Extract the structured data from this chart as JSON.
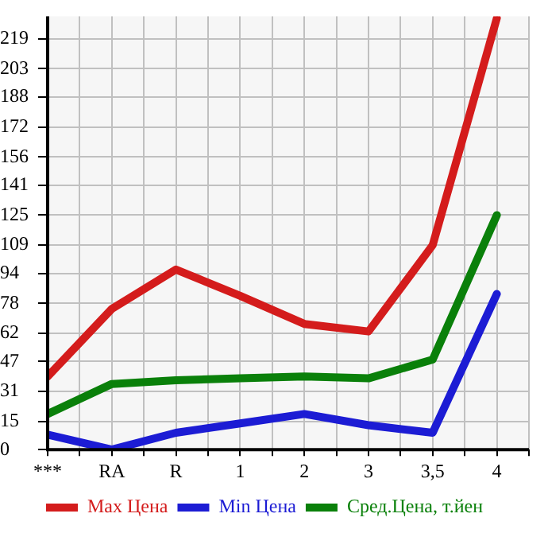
{
  "chart_data": {
    "type": "line",
    "categories": [
      "***",
      "RA",
      "R",
      "1",
      "2",
      "3",
      "3,5",
      "4"
    ],
    "series": [
      {
        "name": "Max Цена",
        "color": "#d41c1c",
        "values": [
          39,
          75,
          96,
          82,
          67,
          63,
          109,
          230
        ]
      },
      {
        "name": "Min Цена",
        "color": "#1c1cd4",
        "values": [
          8,
          0,
          9,
          14,
          19,
          13,
          9,
          83
        ]
      },
      {
        "name": "Сред.Цена, т.йен",
        "color": "#0a800a",
        "values": [
          19,
          35,
          37,
          38,
          39,
          38,
          48,
          125
        ]
      }
    ],
    "ylim": [
      0,
      231
    ],
    "yticks": [
      0,
      15,
      31,
      47,
      62,
      78,
      94,
      109,
      125,
      141,
      156,
      172,
      188,
      203,
      219
    ],
    "grid": true,
    "legend": "bottom",
    "marker": "none"
  }
}
